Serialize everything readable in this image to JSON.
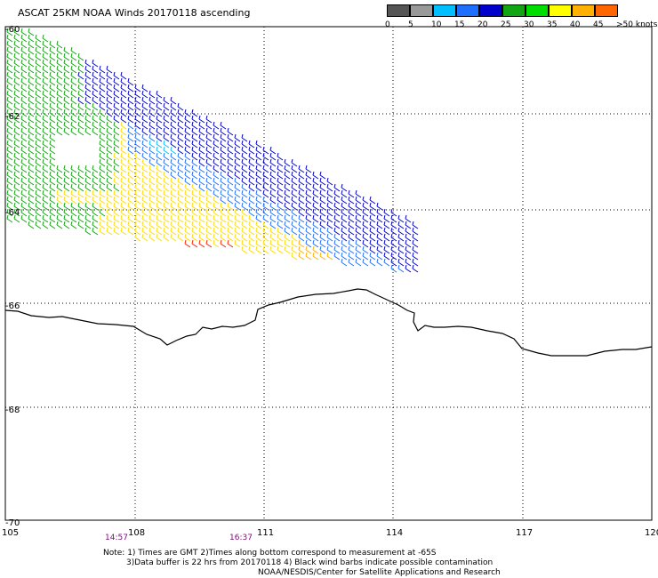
{
  "title": "ASCAT 25KM NOAA Winds 20170118 ascending",
  "colorbar": {
    "colors": [
      "#555555",
      "#999999",
      "#00bfff",
      "#1e6fff",
      "#0000cc",
      "#11a511",
      "#00dd00",
      "#ffff00",
      "#ffb000",
      "#ff6600",
      "#ff0000",
      "#cc0033",
      "#8b4513",
      "#b07a4a",
      "#ff00ff",
      "#b000d0",
      "#4b0082"
    ],
    "labels": [
      "0",
      "5",
      "10",
      "15",
      "20",
      "25",
      "30",
      "35",
      "40",
      "45",
      ">50 knots"
    ]
  },
  "lat_labels": [
    "-60",
    "-62",
    "-64",
    "-66",
    "-68",
    "-70"
  ],
  "lon_labels": [
    "105",
    "108",
    "111",
    "114",
    "117",
    "120"
  ],
  "time_labels": [
    "14:57",
    "16:37"
  ],
  "notes": [
    "Note: 1) Times are GMT 2)Times along bottom correspond to measurement at -65S",
    "3)Data buffer is 22 hrs from 20170118 4) Black wind barbs indicate possible contamination",
    "NOAA/NESDIS/Center for Satellite Applications and Research"
  ]
}
